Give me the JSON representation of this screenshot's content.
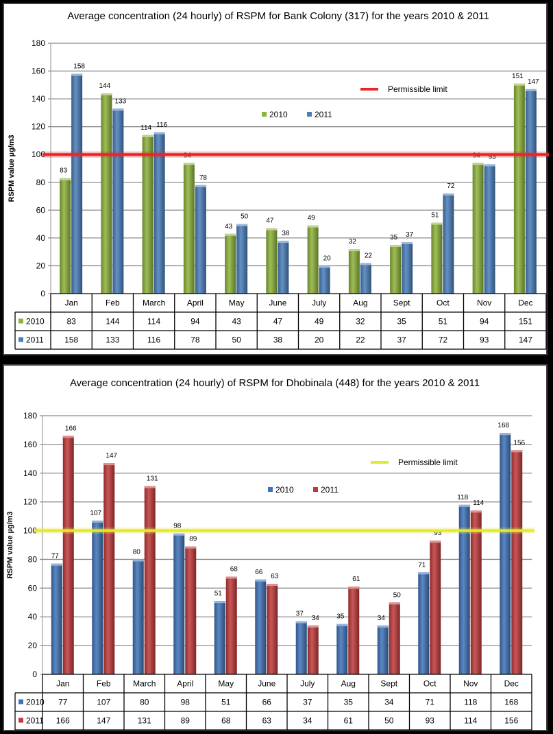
{
  "chart_data": [
    {
      "type": "bar",
      "title": "Average concentration (24 hourly) of RSPM for Bank Colony (317) for the years 2010 & 2011",
      "xlabel": "",
      "ylabel": "RSPM value µg/m3",
      "ylim": [
        0,
        180
      ],
      "yticks": [
        0,
        20,
        40,
        60,
        80,
        100,
        120,
        140,
        160,
        180
      ],
      "grid": true,
      "categories": [
        "Jan",
        "Feb",
        "March",
        "April",
        "May",
        "June",
        "July",
        "Aug",
        "Sept",
        "Oct",
        "Nov",
        "Dec"
      ],
      "series": [
        {
          "name": "2010",
          "color": "#8DB33B",
          "values": [
            83,
            144,
            114,
            94,
            43,
            47,
            49,
            32,
            35,
            51,
            94,
            151
          ]
        },
        {
          "name": "2011",
          "color": "#4A7EBB",
          "values": [
            158,
            133,
            116,
            78,
            50,
            38,
            20,
            22,
            37,
            72,
            93,
            147
          ]
        }
      ],
      "reference_line": {
        "name": "Permissible limit",
        "value": 100,
        "color": "#E8262A"
      },
      "legend": "top-right",
      "data_table": true
    },
    {
      "type": "bar",
      "title": "Average concentration (24 hourly) of RSPM for Dhobinala (448) for the years 2010 & 2011",
      "xlabel": "",
      "ylabel": "RSPM value µg/m3",
      "ylim": [
        0,
        180
      ],
      "yticks": [
        0,
        20,
        40,
        60,
        80,
        100,
        120,
        140,
        160,
        180
      ],
      "grid": true,
      "categories": [
        "Jan",
        "Feb",
        "March",
        "April",
        "May",
        "June",
        "July",
        "Aug",
        "Sept",
        "Oct",
        "Nov",
        "Dec"
      ],
      "series": [
        {
          "name": "2010",
          "color": "#3F73B8",
          "values": [
            77,
            107,
            80,
            98,
            51,
            66,
            37,
            35,
            34,
            71,
            118,
            168
          ]
        },
        {
          "name": "2011",
          "color": "#C0393B",
          "values": [
            166,
            147,
            131,
            89,
            68,
            63,
            34,
            61,
            50,
            93,
            114,
            156
          ]
        }
      ],
      "reference_line": {
        "name": "Permissible limit",
        "value": 100,
        "color": "#E3E832"
      },
      "legend": "top-right",
      "data_table": true
    }
  ]
}
